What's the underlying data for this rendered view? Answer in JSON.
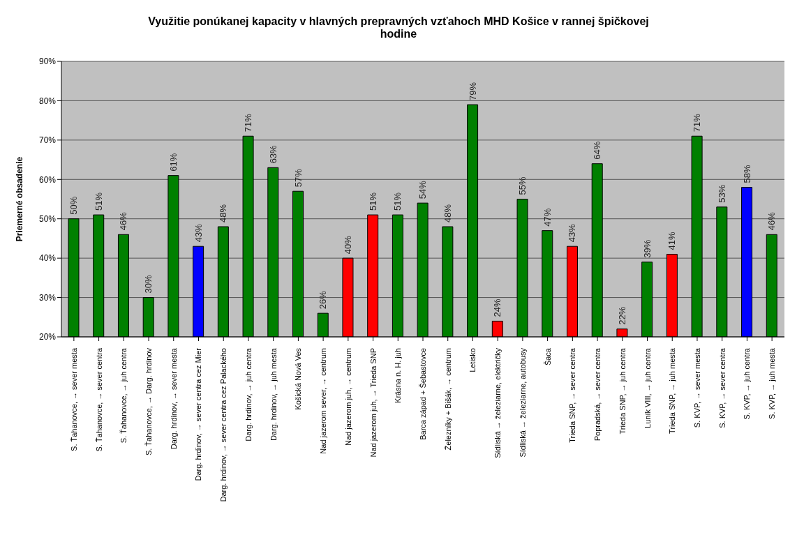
{
  "chart_data": {
    "type": "bar",
    "title": "Využitie ponúkanej kapacity v hlavných prepravných vzťahoch MHD Košice v rannej špičkovej hodine",
    "ylabel": "Priemerné obsadenie",
    "categories": [
      "S. Ťahanovce, → sever mesta",
      "S. Ťahanovce, → sever centra",
      "S. Ťahanovce, → juh centra",
      "S. Ťahanovce, → Darg. hrdinov",
      "Darg. hrdinov, → sever mesta",
      "Darg. hrdinov, → sever centra cez Mier",
      "Darg. hrdinov, → sever centra cez Palackého",
      "Darg. hrdinov, → juh centra",
      "Darg. hrdinov, → juh mesta",
      "Košická Nová Ves",
      "Nad jazerom sever, → centrum",
      "Nad jazerom juh, → centrum",
      "Nad jazerom juh, → Trieda SNP",
      "Krásna n. H. juh",
      "Barca západ + Šebastovce",
      "Železníky + Bišák, → centrum",
      "Letisko",
      "Sídliská → železiarne, električky",
      "Sídliská → železiarne, autobusy",
      "Šaca",
      "Trieda SNP, → sever centra",
      "Popradská, → sever centra",
      "Trieda SNP, → juh centra",
      "Luník VIII, → juh centra",
      "Trieda SNP, → juh mesta",
      "S. KVP, → sever mesta",
      "S. KVP, → sever centra",
      "S. KVP, → juh centra",
      "S. KVP, → juh mesta"
    ],
    "values": [
      50,
      51,
      46,
      30,
      61,
      43,
      48,
      71,
      63,
      57,
      26,
      40,
      51,
      51,
      54,
      48,
      79,
      24,
      55,
      47,
      43,
      64,
      22,
      39,
      41,
      71,
      53,
      58,
      46
    ],
    "value_labels": [
      "50%",
      "51%",
      "46%",
      "30%",
      "61%",
      "43%",
      "48%",
      "71%",
      "63%",
      "57%",
      "26%",
      "40%",
      "51%",
      "51%",
      "54%",
      "48%",
      "79%",
      "24%",
      "55%",
      "47%",
      "43%",
      "64%",
      "22%",
      "39%",
      "41%",
      "71%",
      "53%",
      "58%",
      "46%"
    ],
    "colors": [
      "#008000",
      "#008000",
      "#008000",
      "#008000",
      "#008000",
      "#0000ff",
      "#008000",
      "#008000",
      "#008000",
      "#008000",
      "#008000",
      "#ff0000",
      "#ff0000",
      "#008000",
      "#008000",
      "#008000",
      "#008000",
      "#ff0000",
      "#008000",
      "#008000",
      "#ff0000",
      "#008000",
      "#ff0000",
      "#008000",
      "#ff0000",
      "#008000",
      "#008000",
      "#0000ff",
      "#008000"
    ],
    "ylim": [
      20,
      90
    ],
    "yticks": [
      {
        "value": 20,
        "label": "20%"
      },
      {
        "value": 30,
        "label": "30%"
      },
      {
        "value": 40,
        "label": "40%"
      },
      {
        "value": 50,
        "label": "50%"
      },
      {
        "value": 60,
        "label": "60%"
      },
      {
        "value": 70,
        "label": "70%"
      },
      {
        "value": 80,
        "label": "80%"
      },
      {
        "value": 90,
        "label": "90%"
      }
    ],
    "grid": "y",
    "legend": false
  }
}
